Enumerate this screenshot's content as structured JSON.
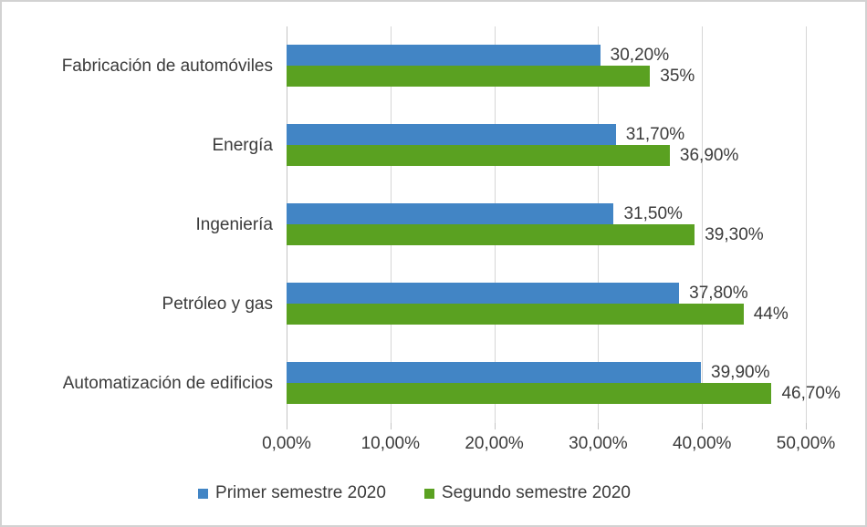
{
  "chart_data": {
    "type": "bar",
    "orientation": "horizontal",
    "title": "",
    "xlabel": "",
    "ylabel": "",
    "grid": true,
    "legend_position": "bottom",
    "categories": [
      "Fabricación de automóviles",
      "Energía",
      "Ingeniería",
      "Petróleo y gas",
      "Automatización de edificios"
    ],
    "series": [
      {
        "name": "Primer semestre 2020",
        "color": "#4285c5",
        "values": [
          30.2,
          31.7,
          31.5,
          37.8,
          39.9
        ],
        "data_labels": [
          "30,20%",
          "31,70%",
          "31,50%",
          "37,80%",
          "39,90%"
        ]
      },
      {
        "name": "Segundo semestre 2020",
        "color": "#5aa121",
        "values": [
          35,
          36.9,
          39.3,
          44,
          46.7
        ],
        "data_labels": [
          "35%",
          "36,90%",
          "39,30%",
          "44%",
          "46,70%"
        ]
      }
    ],
    "x_axis": {
      "min": 0,
      "max": 50,
      "tick_step": 10,
      "tick_labels": [
        "0,00%",
        "10,00%",
        "20,00%",
        "30,00%",
        "40,00%",
        "50,00%"
      ]
    },
    "colors": {
      "gridline": "#d6d6d6",
      "axis_line": "#c4c4c4",
      "text": "#3b3b3b",
      "frame_border": "#d2d2d2",
      "background": "#ffffff"
    }
  }
}
